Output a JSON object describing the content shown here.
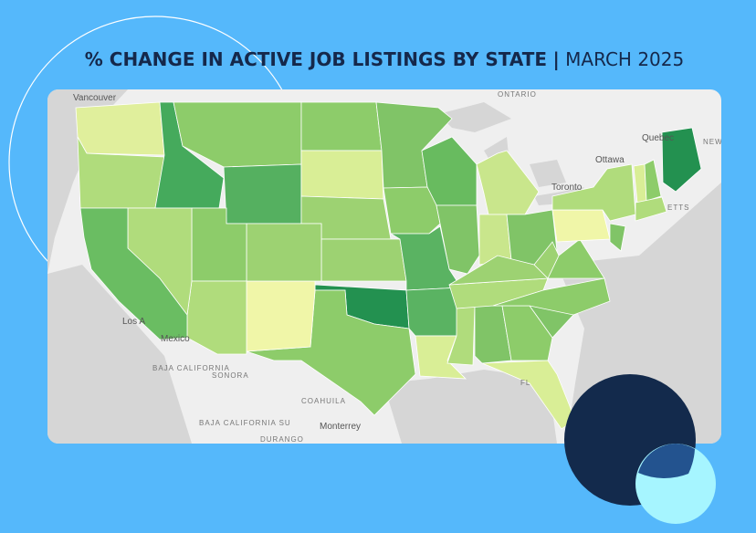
{
  "title": {
    "main": "% CHANGE IN ACTIVE JOB LISTINGS BY STATE",
    "separator": "|",
    "date": "MARCH 2025"
  },
  "map_labels": [
    "Vancouver",
    "ONTARIO",
    "Quebec",
    "Ottawa",
    "Toronto",
    "NEW BRUNSW",
    "ETTS",
    "Los A",
    "Mexico",
    "BAJA CALIFORNIA",
    "SONORA",
    "COAHUILA",
    "BAJA CALIFORNIA SU",
    "Monterrey",
    "DURANGO",
    "FL"
  ]
}
